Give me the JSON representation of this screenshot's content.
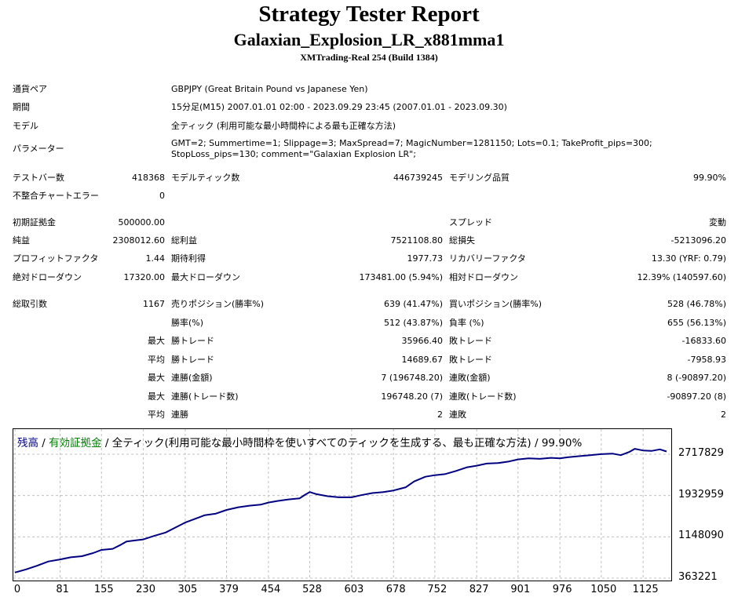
{
  "header": {
    "title": "Strategy Tester Report",
    "subtitle": "Galaxian_Explosion_LR_x881mma1",
    "server": "XMTrading-Real 254 (Build 1384)"
  },
  "info": {
    "pair_label": "通貨ペア",
    "pair_value": "GBPJPY (Great Britain Pound vs Japanese Yen)",
    "period_label": "期間",
    "period_value": "15分足(M15) 2007.01.01 02:00 - 2023.09.29 23:45 (2007.01.01 - 2023.09.30)",
    "model_label": "モデル",
    "model_value": "全ティック (利用可能な最小時間枠による最も正確な方法)",
    "params_label": "パラメーター",
    "params_value": "GMT=2; Summertime=1; Slippage=3; MaxSpread=7; MagicNumber=1281150; Lots=0.1; TakeProfit_pips=300; StopLoss_pips=130; comment=\"Galaxian Explosion LR\";"
  },
  "stats": {
    "bars_label": "テストバー数",
    "bars_value": "418368",
    "ticks_label": "モデルティック数",
    "ticks_value": "446739245",
    "quality_label": "モデリング品質",
    "quality_value": "99.90%",
    "mismatch_label": "不整合チャートエラー",
    "mismatch_value": "0",
    "deposit_label": "初期証拠金",
    "deposit_value": "500000.00",
    "spread_label": "スプレッド",
    "spread_value": "変動",
    "net_label": "純益",
    "net_value": "2308012.60",
    "gross_profit_label": "総利益",
    "gross_profit_value": "7521108.80",
    "gross_loss_label": "総損失",
    "gross_loss_value": "-5213096.20",
    "pf_label": "プロフィットファクタ",
    "pf_value": "1.44",
    "expected_label": "期待利得",
    "expected_value": "1977.73",
    "recovery_label": "リカバリーファクタ",
    "recovery_value": "13.30 (YRF: 0.79)",
    "abs_dd_label": "絶対ドローダウン",
    "abs_dd_value": "17320.00",
    "max_dd_label": "最大ドローダウン",
    "max_dd_value": "173481.00 (5.94%)",
    "rel_dd_label": "相対ドローダウン",
    "rel_dd_value": "12.39% (140597.60)",
    "trades_label": "総取引数",
    "trades_value": "1167",
    "short_label": "売りポジション(勝率%)",
    "short_value": "639 (41.47%)",
    "long_label": "買いポジション(勝率%)",
    "long_value": "528 (46.78%)",
    "win_rate_label": "勝率(%)",
    "win_rate_value": "512 (43.87%)",
    "loss_rate_label": "負率 (%)",
    "loss_rate_value": "655 (56.13%)",
    "max_label": "最大",
    "avg_label": "平均",
    "largest_win_label": "勝トレード",
    "largest_win_value": "35966.40",
    "largest_loss_label": "敗トレード",
    "largest_loss_value": "-16833.60",
    "avg_win_label": "勝トレード",
    "avg_win_value": "14689.67",
    "avg_loss_label": "敗トレード",
    "avg_loss_value": "-7958.93",
    "max_consec_win_amt_label": "連勝(金額)",
    "max_consec_win_amt_value": "7 (196748.20)",
    "max_consec_loss_amt_label": "連敗(金額)",
    "max_consec_loss_amt_value": "8 (-90897.20)",
    "max_consec_win_cnt_label": "連勝(トレード数)",
    "max_consec_win_cnt_value": "196748.20 (7)",
    "max_consec_loss_cnt_label": "連敗(トレード数)",
    "max_consec_loss_cnt_value": "-90897.20 (8)",
    "avg_consec_win_label": "連勝",
    "avg_consec_win_value": "2",
    "avg_consec_loss_label": "連敗",
    "avg_consec_loss_value": "2"
  },
  "chart_legend": {
    "balance": "残高",
    "sep1": " / ",
    "equity": "有効証拠金",
    "rest": " / 全ティック(利用可能な最小時間枠を使いすべてのティックを生成する、最も正確な方法) / 99.90%"
  },
  "colors": {
    "balance": "#000080",
    "equity": "#008000",
    "grid": "#c0c0c0"
  },
  "chart_data": {
    "type": "line",
    "title": "",
    "xlabel": "",
    "ylabel": "",
    "x_ticks": [
      "0",
      "81",
      "155",
      "230",
      "305",
      "379",
      "454",
      "528",
      "603",
      "678",
      "752",
      "827",
      "901",
      "976",
      "1050",
      "1125"
    ],
    "y_ticks": [
      "2717829",
      "1932959",
      "1148090",
      "363221"
    ],
    "xlim": [
      0,
      1167
    ],
    "ylim": [
      363221,
      2717829
    ],
    "grid": true,
    "series": [
      {
        "x": [
          0,
          20,
          40,
          60,
          81,
          100,
          120,
          140,
          155,
          175,
          190,
          200,
          215,
          230,
          250,
          270,
          290,
          305,
          320,
          340,
          360,
          379,
          400,
          420,
          440,
          454,
          470,
          490,
          510,
          520,
          528,
          540,
          560,
          580,
          603,
          620,
          640,
          660,
          678,
          700,
          715,
          735,
          752,
          770,
          790,
          810,
          827,
          845,
          865,
          885,
          901,
          920,
          940,
          960,
          976,
          990,
          1010,
          1030,
          1050,
          1070,
          1085,
          1100,
          1110,
          1125,
          1140,
          1155,
          1167
        ],
        "values": [
          470000,
          530000,
          600000,
          680000,
          720000,
          760000,
          780000,
          840000,
          900000,
          920000,
          1000000,
          1060000,
          1080000,
          1100000,
          1170000,
          1230000,
          1340000,
          1420000,
          1480000,
          1560000,
          1590000,
          1660000,
          1710000,
          1740000,
          1760000,
          1800000,
          1830000,
          1860000,
          1880000,
          1950000,
          2000000,
          1960000,
          1920000,
          1900000,
          1900000,
          1940000,
          1980000,
          2000000,
          2030000,
          2090000,
          2200000,
          2290000,
          2320000,
          2340000,
          2400000,
          2470000,
          2500000,
          2540000,
          2550000,
          2580000,
          2620000,
          2640000,
          2630000,
          2650000,
          2640000,
          2660000,
          2680000,
          2700000,
          2720000,
          2730000,
          2700000,
          2760000,
          2820000,
          2790000,
          2780000,
          2810000,
          2770000
        ]
      }
    ]
  }
}
